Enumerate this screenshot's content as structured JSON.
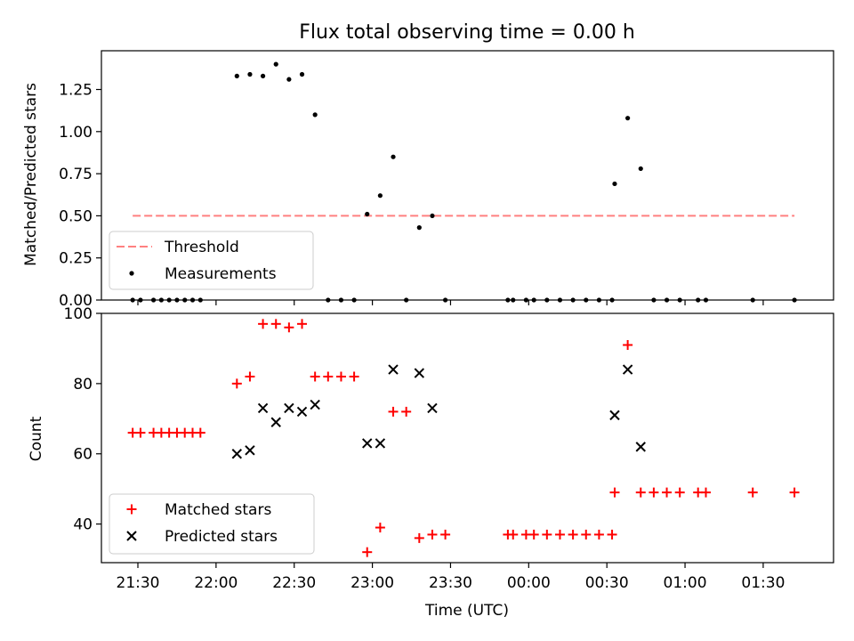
{
  "chart_data": [
    {
      "type": "scatter",
      "title": "Flux total observing time = 0.00 h",
      "xlabel": "",
      "ylabel": "Matched/Predicted stars",
      "x_axis": "time (UTC), minutes after 00:00 on the first night shown (negative = before midnight)",
      "xlim": [
        "21:16",
        "01:57"
      ],
      "ylim": [
        0,
        1.48
      ],
      "yticks": [
        "0.00",
        "0.25",
        "0.50",
        "0.75",
        "1.00",
        "1.25"
      ],
      "legend_position": "lower-left",
      "legend": [
        "Threshold",
        "Measurements"
      ],
      "threshold": {
        "name": "Threshold",
        "value": 0.5,
        "x_range": [
          "21:28",
          "01:42"
        ],
        "color": "#ff8080",
        "dash": "dashed"
      },
      "series": [
        {
          "name": "Measurements",
          "marker": "dot",
          "color": "#000000",
          "points": [
            [
              "21:28",
              0.0
            ],
            [
              "21:31",
              0.0
            ],
            [
              "21:36",
              0.0
            ],
            [
              "21:39",
              0.0
            ],
            [
              "21:42",
              0.0
            ],
            [
              "21:45",
              0.0
            ],
            [
              "21:48",
              0.0
            ],
            [
              "21:51",
              0.0
            ],
            [
              "21:54",
              0.0
            ],
            [
              "22:08",
              1.33
            ],
            [
              "22:13",
              1.34
            ],
            [
              "22:18",
              1.33
            ],
            [
              "22:23",
              1.4
            ],
            [
              "22:28",
              1.31
            ],
            [
              "22:33",
              1.34
            ],
            [
              "22:38",
              1.1
            ],
            [
              "22:43",
              0.0
            ],
            [
              "22:48",
              0.0
            ],
            [
              "22:53",
              0.0
            ],
            [
              "22:58",
              0.51
            ],
            [
              "23:03",
              0.62
            ],
            [
              "23:08",
              0.85
            ],
            [
              "23:13",
              0.0
            ],
            [
              "23:18",
              0.43
            ],
            [
              "23:23",
              0.5
            ],
            [
              "23:28",
              0.0
            ],
            [
              "23:52",
              0.0
            ],
            [
              "23:54",
              0.0
            ],
            [
              "23:59",
              0.0
            ],
            [
              "00:02",
              0.0
            ],
            [
              "00:07",
              0.0
            ],
            [
              "00:12",
              0.0
            ],
            [
              "00:17",
              0.0
            ],
            [
              "00:22",
              0.0
            ],
            [
              "00:27",
              0.0
            ],
            [
              "00:32",
              0.0
            ],
            [
              "00:33",
              0.69
            ],
            [
              "00:38",
              1.08
            ],
            [
              "00:43",
              0.78
            ],
            [
              "00:48",
              0.0
            ],
            [
              "00:53",
              0.0
            ],
            [
              "00:58",
              0.0
            ],
            [
              "01:05",
              0.0
            ],
            [
              "01:08",
              0.0
            ],
            [
              "01:26",
              0.0
            ],
            [
              "01:42",
              0.0
            ]
          ]
        }
      ]
    },
    {
      "type": "scatter",
      "title": "",
      "xlabel": "Time (UTC)",
      "ylabel": "Count",
      "xlim": [
        "21:16",
        "01:57"
      ],
      "ylim": [
        29,
        100
      ],
      "yticks": [
        "40",
        "60",
        "80",
        "100"
      ],
      "xticks": [
        "21:30",
        "22:00",
        "22:30",
        "23:00",
        "23:30",
        "00:00",
        "00:30",
        "01:00",
        "01:30"
      ],
      "legend_position": "lower-left",
      "legend": [
        "Matched stars",
        "Predicted stars"
      ],
      "series": [
        {
          "name": "Matched stars",
          "marker": "plus",
          "color": "#ff0000",
          "points": [
            [
              "21:28",
              66
            ],
            [
              "21:31",
              66
            ],
            [
              "21:36",
              66
            ],
            [
              "21:39",
              66
            ],
            [
              "21:42",
              66
            ],
            [
              "21:45",
              66
            ],
            [
              "21:48",
              66
            ],
            [
              "21:51",
              66
            ],
            [
              "21:54",
              66
            ],
            [
              "22:08",
              80
            ],
            [
              "22:13",
              82
            ],
            [
              "22:18",
              97
            ],
            [
              "22:23",
              97
            ],
            [
              "22:28",
              96
            ],
            [
              "22:33",
              97
            ],
            [
              "22:38",
              82
            ],
            [
              "22:43",
              82
            ],
            [
              "22:48",
              82
            ],
            [
              "22:53",
              82
            ],
            [
              "22:58",
              32
            ],
            [
              "23:03",
              39
            ],
            [
              "23:08",
              72
            ],
            [
              "23:13",
              72
            ],
            [
              "23:18",
              36
            ],
            [
              "23:23",
              37
            ],
            [
              "23:28",
              37
            ],
            [
              "23:52",
              37
            ],
            [
              "23:54",
              37
            ],
            [
              "23:59",
              37
            ],
            [
              "00:02",
              37
            ],
            [
              "00:07",
              37
            ],
            [
              "00:12",
              37
            ],
            [
              "00:17",
              37
            ],
            [
              "00:22",
              37
            ],
            [
              "00:27",
              37
            ],
            [
              "00:32",
              37
            ],
            [
              "00:33",
              49
            ],
            [
              "00:38",
              91
            ],
            [
              "00:43",
              49
            ],
            [
              "00:48",
              49
            ],
            [
              "00:53",
              49
            ],
            [
              "00:58",
              49
            ],
            [
              "01:05",
              49
            ],
            [
              "01:08",
              49
            ],
            [
              "01:26",
              49
            ],
            [
              "01:42",
              49
            ]
          ]
        },
        {
          "name": "Predicted stars",
          "marker": "x",
          "color": "#000000",
          "points": [
            [
              "22:08",
              60
            ],
            [
              "22:13",
              61
            ],
            [
              "22:18",
              73
            ],
            [
              "22:23",
              69
            ],
            [
              "22:28",
              73
            ],
            [
              "22:33",
              72
            ],
            [
              "22:38",
              74
            ],
            [
              "22:58",
              63
            ],
            [
              "23:03",
              63
            ],
            [
              "23:08",
              84
            ],
            [
              "23:18",
              83
            ],
            [
              "23:23",
              73
            ],
            [
              "00:33",
              71
            ],
            [
              "00:38",
              84
            ],
            [
              "00:43",
              62
            ]
          ]
        }
      ]
    }
  ]
}
